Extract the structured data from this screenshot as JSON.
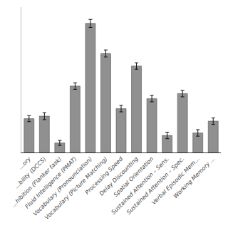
{
  "chart_data": {
    "type": "bar",
    "categories": [
      "...ory",
      "...bility (DCCS)",
      "...hibition (Flanker task)",
      "Fluid Intelligence (PMAT)",
      "Vocabulary (Pronounciation)",
      "Vocabulary (Picture Matching)",
      "Processing Speed",
      "Delay Discounting",
      "Spatial Orientation",
      "Sustained Attention – Sens.",
      "Sustained Attention – Spec.",
      "Verbal Episodic Mem...",
      "Working Memory ..."
    ],
    "values": [
      0.135,
      0.145,
      0.038,
      0.265,
      0.515,
      0.395,
      0.175,
      0.345,
      0.215,
      0.068,
      0.235,
      0.078,
      0.125
    ],
    "errors": [
      0.012,
      0.014,
      0.01,
      0.013,
      0.016,
      0.014,
      0.013,
      0.013,
      0.013,
      0.013,
      0.013,
      0.013,
      0.013
    ],
    "color": "#909090",
    "ylim": [
      0,
      0.58
    ],
    "grid": false,
    "tick_labels": "x"
  }
}
